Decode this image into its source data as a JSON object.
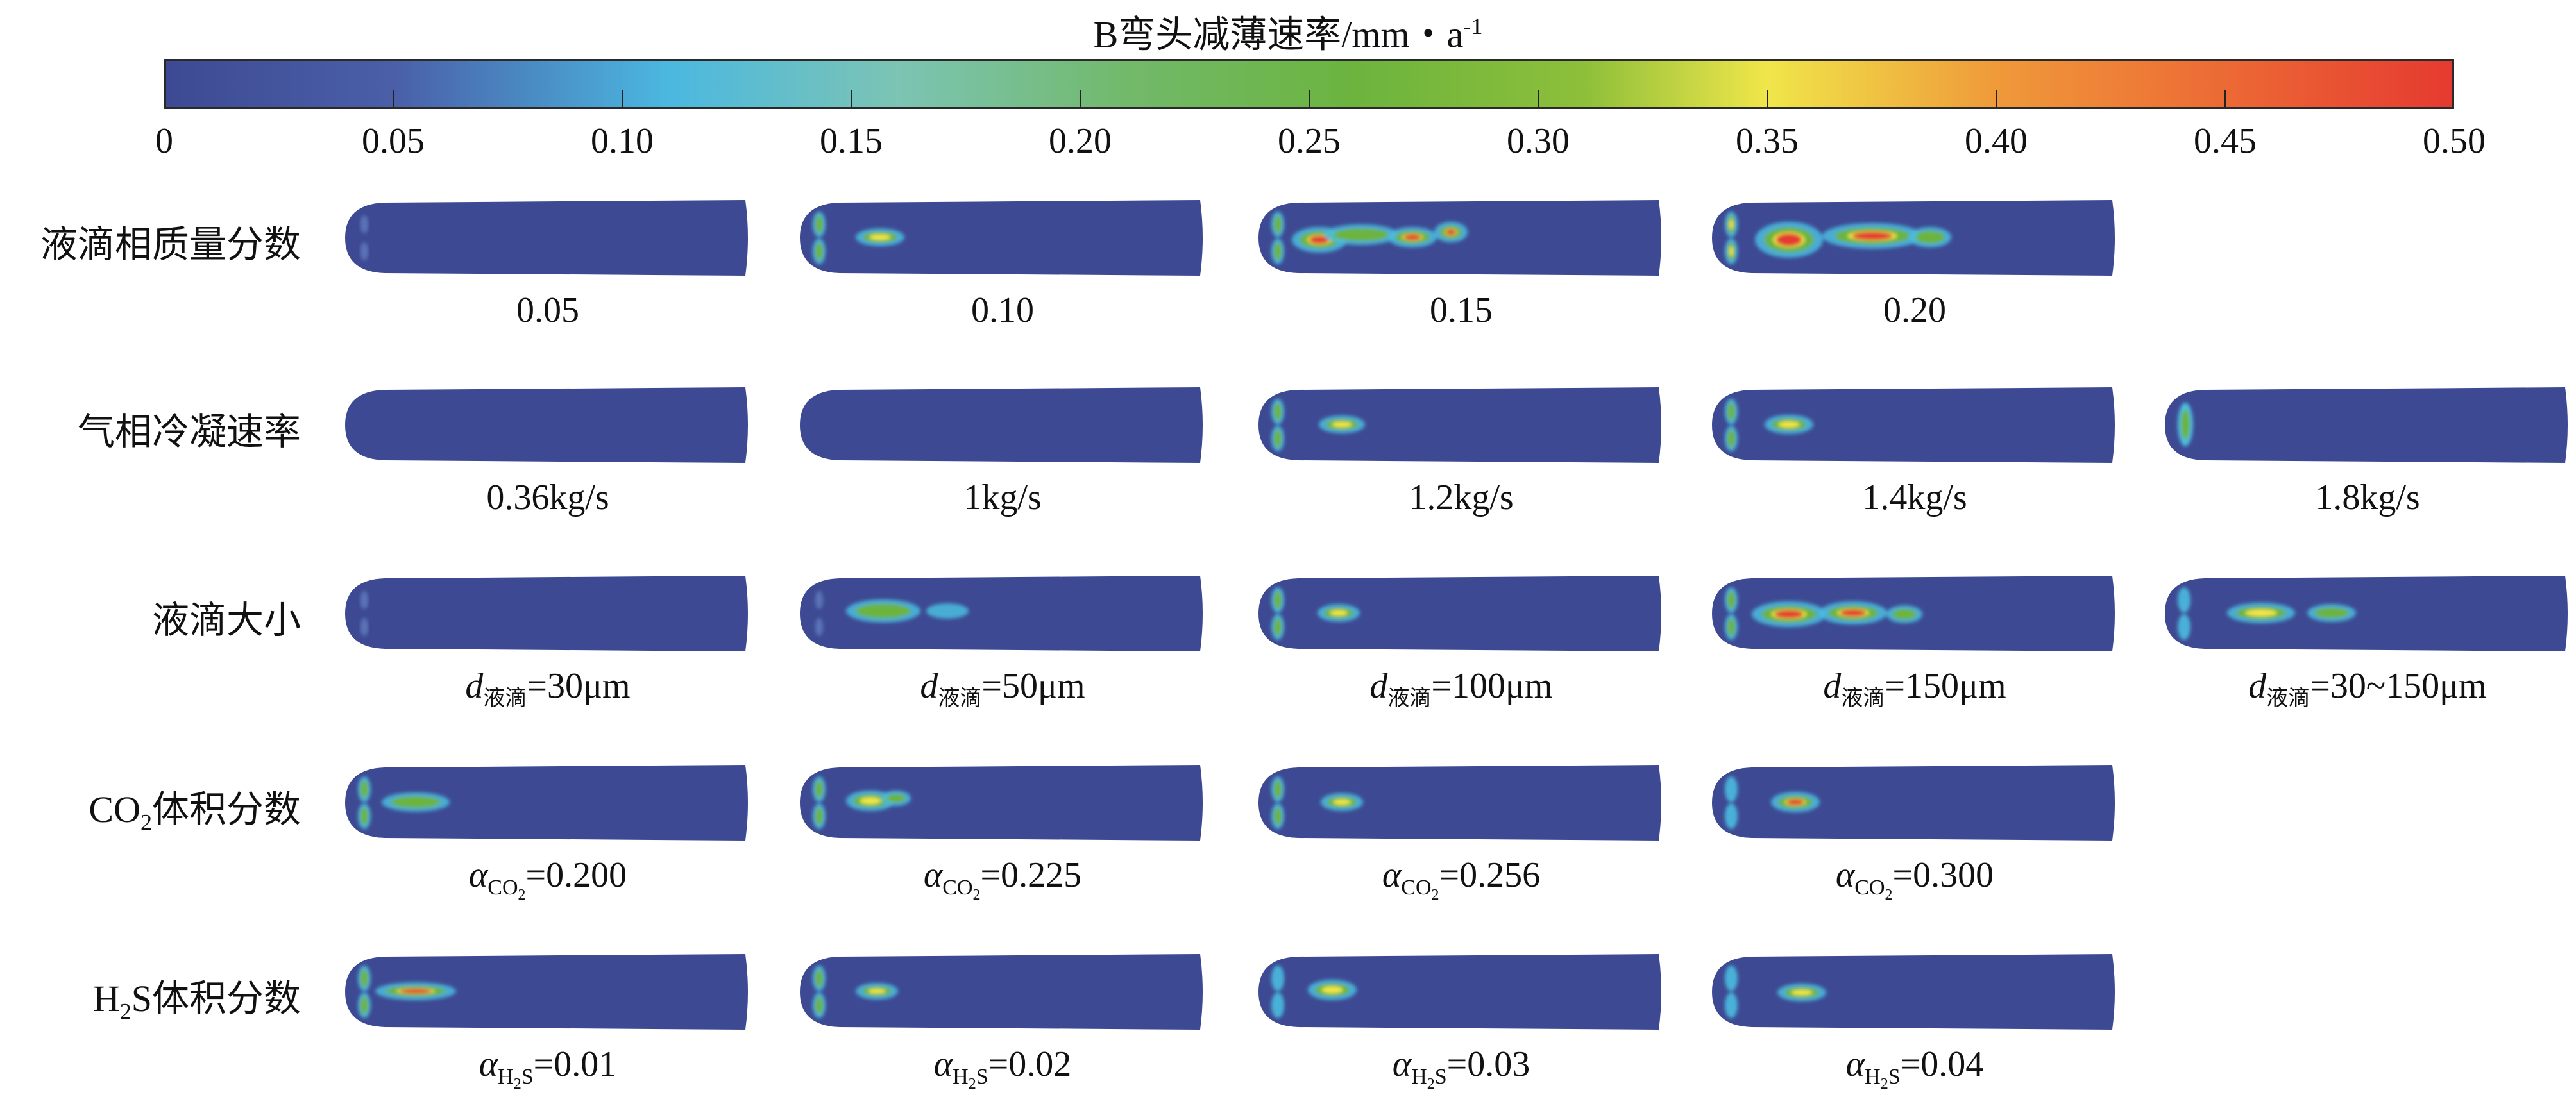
{
  "chart_data": {
    "type": "heatmap",
    "title": "B弯头减薄速率/mm・a",
    "title_sup": "-1",
    "colorbar": {
      "range": [
        0,
        0.5
      ],
      "ticks": [
        "0",
        "0.05",
        "0.10",
        "0.15",
        "0.20",
        "0.25",
        "0.30",
        "0.35",
        "0.40",
        "0.45",
        "0.50"
      ],
      "colors": [
        "#3d4a93",
        "#4a5fa8",
        "#4bb8e0",
        "#7cc4b4",
        "#72b96b",
        "#6cb43e",
        "#8dbf3a",
        "#f0e64a",
        "#ef9a3a",
        "#ec6a35",
        "#e53a30"
      ]
    },
    "rows": [
      {
        "label": {
          "pre": "液滴相质量分数",
          "sub": "",
          "post": ""
        },
        "panels": [
          {
            "plain": "0.05"
          },
          {
            "plain": "0.10"
          },
          {
            "plain": "0.15"
          },
          {
            "plain": "0.20"
          }
        ]
      },
      {
        "label": {
          "pre": "气相冷凝速率",
          "sub": "",
          "post": ""
        },
        "panels": [
          {
            "plain": "0.36kg/s"
          },
          {
            "plain": "1kg/s"
          },
          {
            "plain": "1.2kg/s"
          },
          {
            "plain": "1.4kg/s"
          },
          {
            "plain": "1.8kg/s"
          }
        ]
      },
      {
        "label": {
          "pre": "液滴大小",
          "sub": "",
          "post": ""
        },
        "panels": [
          {
            "var": "d",
            "sub": "液滴",
            "subsub": "",
            "value": "=30μm"
          },
          {
            "var": "d",
            "sub": "液滴",
            "subsub": "",
            "value": "=50μm"
          },
          {
            "var": "d",
            "sub": "液滴",
            "subsub": "",
            "value": "=100μm"
          },
          {
            "var": "d",
            "sub": "液滴",
            "subsub": "",
            "value": "=150μm"
          },
          {
            "var": "d",
            "sub": "液滴",
            "subsub": "",
            "value": "=30~150μm"
          }
        ]
      },
      {
        "label": {
          "pre": "CO",
          "sub": "2",
          "post": "体积分数"
        },
        "panels": [
          {
            "var": "α",
            "sub": "CO",
            "subsub": "2",
            "value": "=0.200"
          },
          {
            "var": "α",
            "sub": "CO",
            "subsub": "2",
            "value": "=0.225"
          },
          {
            "var": "α",
            "sub": "CO",
            "subsub": "2",
            "value": "=0.256"
          },
          {
            "var": "α",
            "sub": "CO",
            "subsub": "2",
            "value": "=0.300"
          }
        ]
      },
      {
        "label": {
          "pre": "H",
          "sub": "2",
          "post": "S体积分数"
        },
        "panels": [
          {
            "var": "α",
            "sub": "H",
            "subsub": "2",
            "subpost": "S",
            "value": "=0.01"
          },
          {
            "var": "α",
            "sub": "H",
            "subsub": "2",
            "subpost": "S",
            "value": "=0.02"
          },
          {
            "var": "α",
            "sub": "H",
            "subsub": "2",
            "subpost": "S",
            "value": "=0.03"
          },
          {
            "var": "α",
            "sub": "H",
            "subsub": "2",
            "subpost": "S",
            "value": "=0.04"
          }
        ]
      }
    ]
  }
}
